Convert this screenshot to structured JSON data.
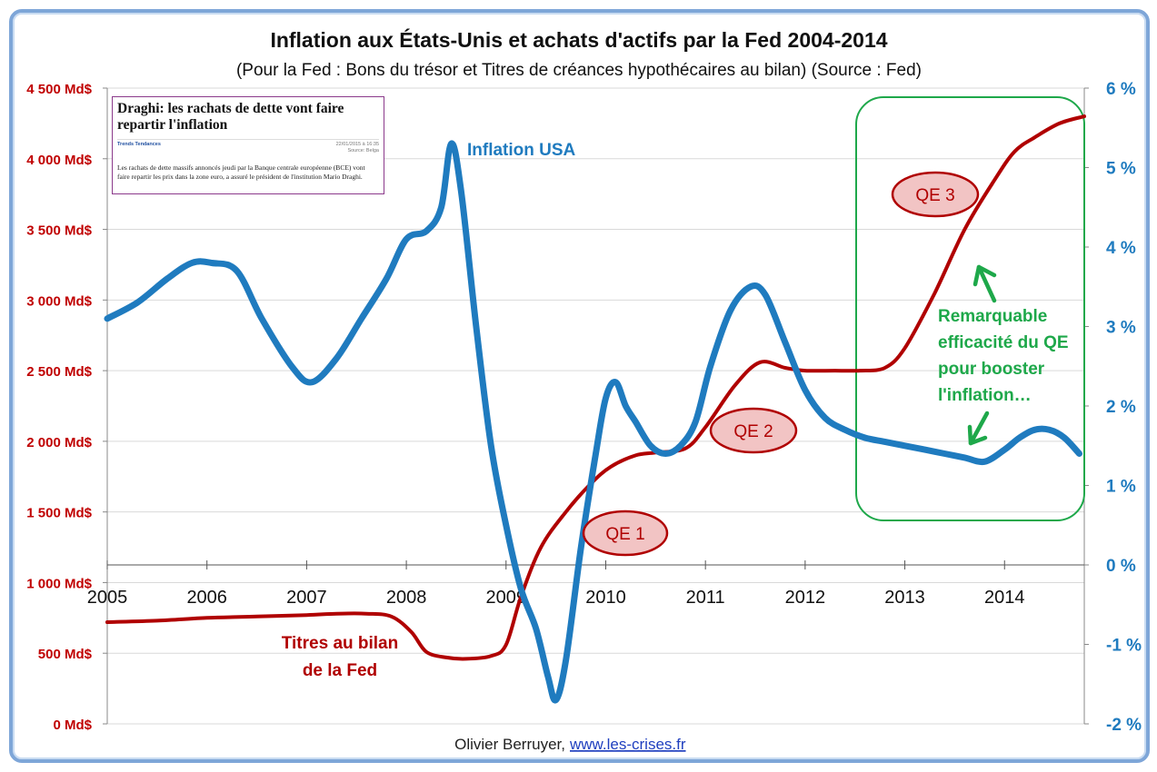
{
  "chart_data": {
    "type": "line",
    "title": "Inflation aux États-Unis et achats d'actifs par la Fed 2004-2014",
    "subtitle": "(Pour la Fed : Bons du trésor et Titres de créances hypothécaires au bilan) (Source : Fed)",
    "x_ticks": [
      "2005",
      "2006",
      "2007",
      "2008",
      "2009",
      "2010",
      "2011",
      "2012",
      "2013",
      "2014"
    ],
    "x_range": [
      2005,
      2014.8
    ],
    "y_left": {
      "range": [
        0,
        4500
      ],
      "unit": "Md$",
      "tick_labels": [
        "0 Md$",
        "500 Md$",
        "1 000 Md$",
        "1 500 Md$",
        "2 000 Md$",
        "2 500 Md$",
        "3 000 Md$",
        "3 500 Md$",
        "4 000 Md$",
        "4 500 Md$"
      ]
    },
    "y_right": {
      "range": [
        -2,
        6
      ],
      "unit": "%",
      "tick_labels": [
        "-2 %",
        "-1 %",
        "0 %",
        "1 %",
        "2 %",
        "3 %",
        "4 %",
        "5 %",
        "6 %"
      ]
    },
    "grid": true,
    "series": [
      {
        "name": "Inflation USA",
        "axis": "right",
        "color": "#1f7bbf",
        "x": [
          2005.0,
          2005.3,
          2005.6,
          2005.85,
          2006.05,
          2006.3,
          2006.55,
          2006.85,
          2007.05,
          2007.3,
          2007.55,
          2007.8,
          2008.0,
          2008.2,
          2008.35,
          2008.45,
          2008.55,
          2008.7,
          2008.85,
          2009.0,
          2009.15,
          2009.3,
          2009.42,
          2009.5,
          2009.6,
          2009.75,
          2009.9,
          2010.0,
          2010.1,
          2010.2,
          2010.3,
          2010.45,
          2010.6,
          2010.75,
          2010.9,
          2011.05,
          2011.25,
          2011.45,
          2011.6,
          2011.8,
          2012.0,
          2012.2,
          2012.4,
          2012.6,
          2012.8,
          2013.0,
          2013.2,
          2013.4,
          2013.6,
          2013.8,
          2014.0,
          2014.15,
          2014.3,
          2014.45,
          2014.6,
          2014.75
        ],
        "values": [
          3.1,
          3.3,
          3.6,
          3.8,
          3.8,
          3.7,
          3.1,
          2.5,
          2.3,
          2.6,
          3.1,
          3.6,
          4.1,
          4.2,
          4.5,
          5.3,
          4.7,
          3.0,
          1.5,
          0.5,
          -0.3,
          -0.8,
          -1.4,
          -1.7,
          -1.2,
          0.2,
          1.4,
          2.1,
          2.3,
          2.0,
          1.8,
          1.5,
          1.4,
          1.5,
          1.8,
          2.5,
          3.2,
          3.5,
          3.4,
          2.8,
          2.2,
          1.85,
          1.7,
          1.6,
          1.55,
          1.5,
          1.45,
          1.4,
          1.35,
          1.3,
          1.45,
          1.6,
          1.7,
          1.7,
          1.6,
          1.4
        ]
      },
      {
        "name": "Titres au bilan de la Fed",
        "axis": "left",
        "color": "#b00000",
        "x": [
          2005.0,
          2005.5,
          2006.0,
          2006.5,
          2007.0,
          2007.3,
          2007.6,
          2007.85,
          2008.05,
          2008.2,
          2008.4,
          2008.6,
          2008.85,
          2009.0,
          2009.15,
          2009.35,
          2009.6,
          2009.85,
          2010.05,
          2010.3,
          2010.5,
          2010.8,
          2011.0,
          2011.3,
          2011.55,
          2011.8,
          2012.0,
          2012.3,
          2012.55,
          2012.8,
          2013.0,
          2013.3,
          2013.6,
          2013.9,
          2014.1,
          2014.3,
          2014.55,
          2014.8
        ],
        "values": [
          720,
          730,
          750,
          760,
          770,
          780,
          780,
          760,
          650,
          510,
          470,
          460,
          480,
          560,
          900,
          1250,
          1500,
          1700,
          1820,
          1900,
          1920,
          1950,
          2100,
          2400,
          2560,
          2520,
          2500,
          2500,
          2500,
          2520,
          2660,
          3050,
          3500,
          3850,
          4050,
          4150,
          4250,
          4300
        ]
      }
    ],
    "annotations": {
      "inflation_label": "Inflation USA",
      "fed_label_line1": "Titres au bilan",
      "fed_label_line2": "de la Fed",
      "qe1": "QE 1",
      "qe2": "QE 2",
      "qe3": "QE 3",
      "remark_lines": [
        "Remarquable",
        "efficacité du QE",
        "pour booster",
        "l'inflation…"
      ]
    },
    "credit": {
      "author": "Olivier Berruyer,",
      "link": "www.les-crises.fr"
    },
    "colors": {
      "inflation": "#1f7bbf",
      "fed": "#b00000",
      "qe_fill": "#f2c4c4",
      "green": "#1ea84a",
      "frame": "#7ea6d8"
    }
  },
  "news": {
    "title": "Draghi: les rachats de dette vont faire repartir l'inflation",
    "source": "Trends Tendances",
    "date": "22/01/2015 à 16:35",
    "date_source": "Source: Belga",
    "body": "Les rachats de dette massifs annoncés jeudi par la Banque centrale européenne (BCE) vont faire repartir les prix dans la zone euro, a assuré le président de l'institution Mario Draghi."
  }
}
